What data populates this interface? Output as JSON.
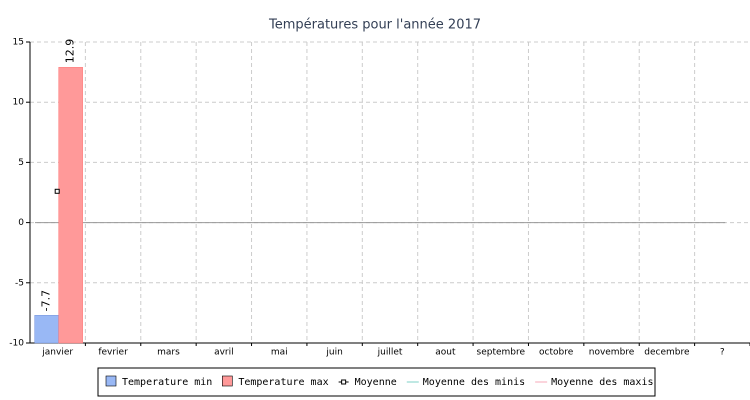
{
  "chart_data": {
    "type": "bar",
    "title": "Températures pour l'année 2017",
    "categories": [
      "janvier",
      "fevrier",
      "mars",
      "avril",
      "mai",
      "juin",
      "juillet",
      "aout",
      "septembre",
      "octobre",
      "novembre",
      "decembre",
      "?"
    ],
    "series": [
      {
        "name": "Temperature min",
        "type": "bar",
        "color": "#99b8f5",
        "values": [
          -7.7,
          null,
          null,
          null,
          null,
          null,
          null,
          null,
          null,
          null,
          null,
          null,
          null
        ]
      },
      {
        "name": "Temperature max",
        "type": "bar",
        "color": "#ff9999",
        "values": [
          12.9,
          null,
          null,
          null,
          null,
          null,
          null,
          null,
          null,
          null,
          null,
          null,
          null
        ]
      },
      {
        "name": "Moyenne",
        "type": "point",
        "color": "#000000",
        "values": [
          2.6,
          null,
          null,
          null,
          null,
          null,
          null,
          null,
          null,
          null,
          null,
          null,
          null
        ]
      },
      {
        "name": "Moyenne des minis",
        "type": "line",
        "color": "#7fd1c7",
        "values": [
          null,
          null,
          null,
          null,
          null,
          null,
          null,
          null,
          null,
          null,
          null,
          null,
          null
        ]
      },
      {
        "name": "Moyenne des maxis",
        "type": "line",
        "color": "#f7a8b8",
        "values": [
          null,
          null,
          null,
          null,
          null,
          null,
          null,
          null,
          null,
          null,
          null,
          null,
          null
        ]
      }
    ],
    "ylim": [
      -10,
      15
    ],
    "yticks": [
      -10,
      -5,
      0,
      5,
      10,
      15
    ],
    "grid": true,
    "legend": "bottom"
  }
}
